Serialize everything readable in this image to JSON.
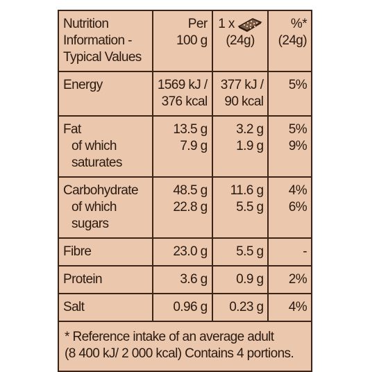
{
  "header": [
    [
      "Nutrition",
      "Information -",
      "Typical Values"
    ],
    [
      "Per",
      "100 g"
    ],
    [
      "1 x",
      "(24g)"
    ],
    [
      "%*",
      "(24g)"
    ]
  ],
  "rows": [
    [
      [
        "Energy"
      ],
      [
        "1569 kJ /",
        "376 kcal"
      ],
      [
        "377 kJ /",
        "90 kcal"
      ],
      [
        "5%"
      ]
    ],
    [
      [
        "Fat",
        "of which",
        "saturates"
      ],
      [
        "13.5 g",
        "7.9 g"
      ],
      [
        "3.2 g",
        "1.9 g"
      ],
      [
        "5%",
        "9%"
      ]
    ],
    [
      [
        "Carbohydrate",
        "of which",
        "sugars"
      ],
      [
        "48.5 g",
        "22.8 g"
      ],
      [
        "11.6 g",
        "5.5 g"
      ],
      [
        "4%",
        "6%"
      ]
    ],
    [
      [
        "Fibre"
      ],
      [
        "23.0 g"
      ],
      [
        "5.5 g"
      ],
      [
        "-"
      ]
    ],
    [
      [
        "Protein"
      ],
      [
        "3.6 g"
      ],
      [
        "0.9 g"
      ],
      [
        "2%"
      ]
    ],
    [
      [
        "Salt"
      ],
      [
        "0.96 g"
      ],
      [
        "0.23 g"
      ],
      [
        "4%"
      ]
    ]
  ],
  "footnote": [
    "* Reference intake of an average adult",
    "(8 400 kJ/ 2 000 kcal) Contains 4 portions."
  ]
}
